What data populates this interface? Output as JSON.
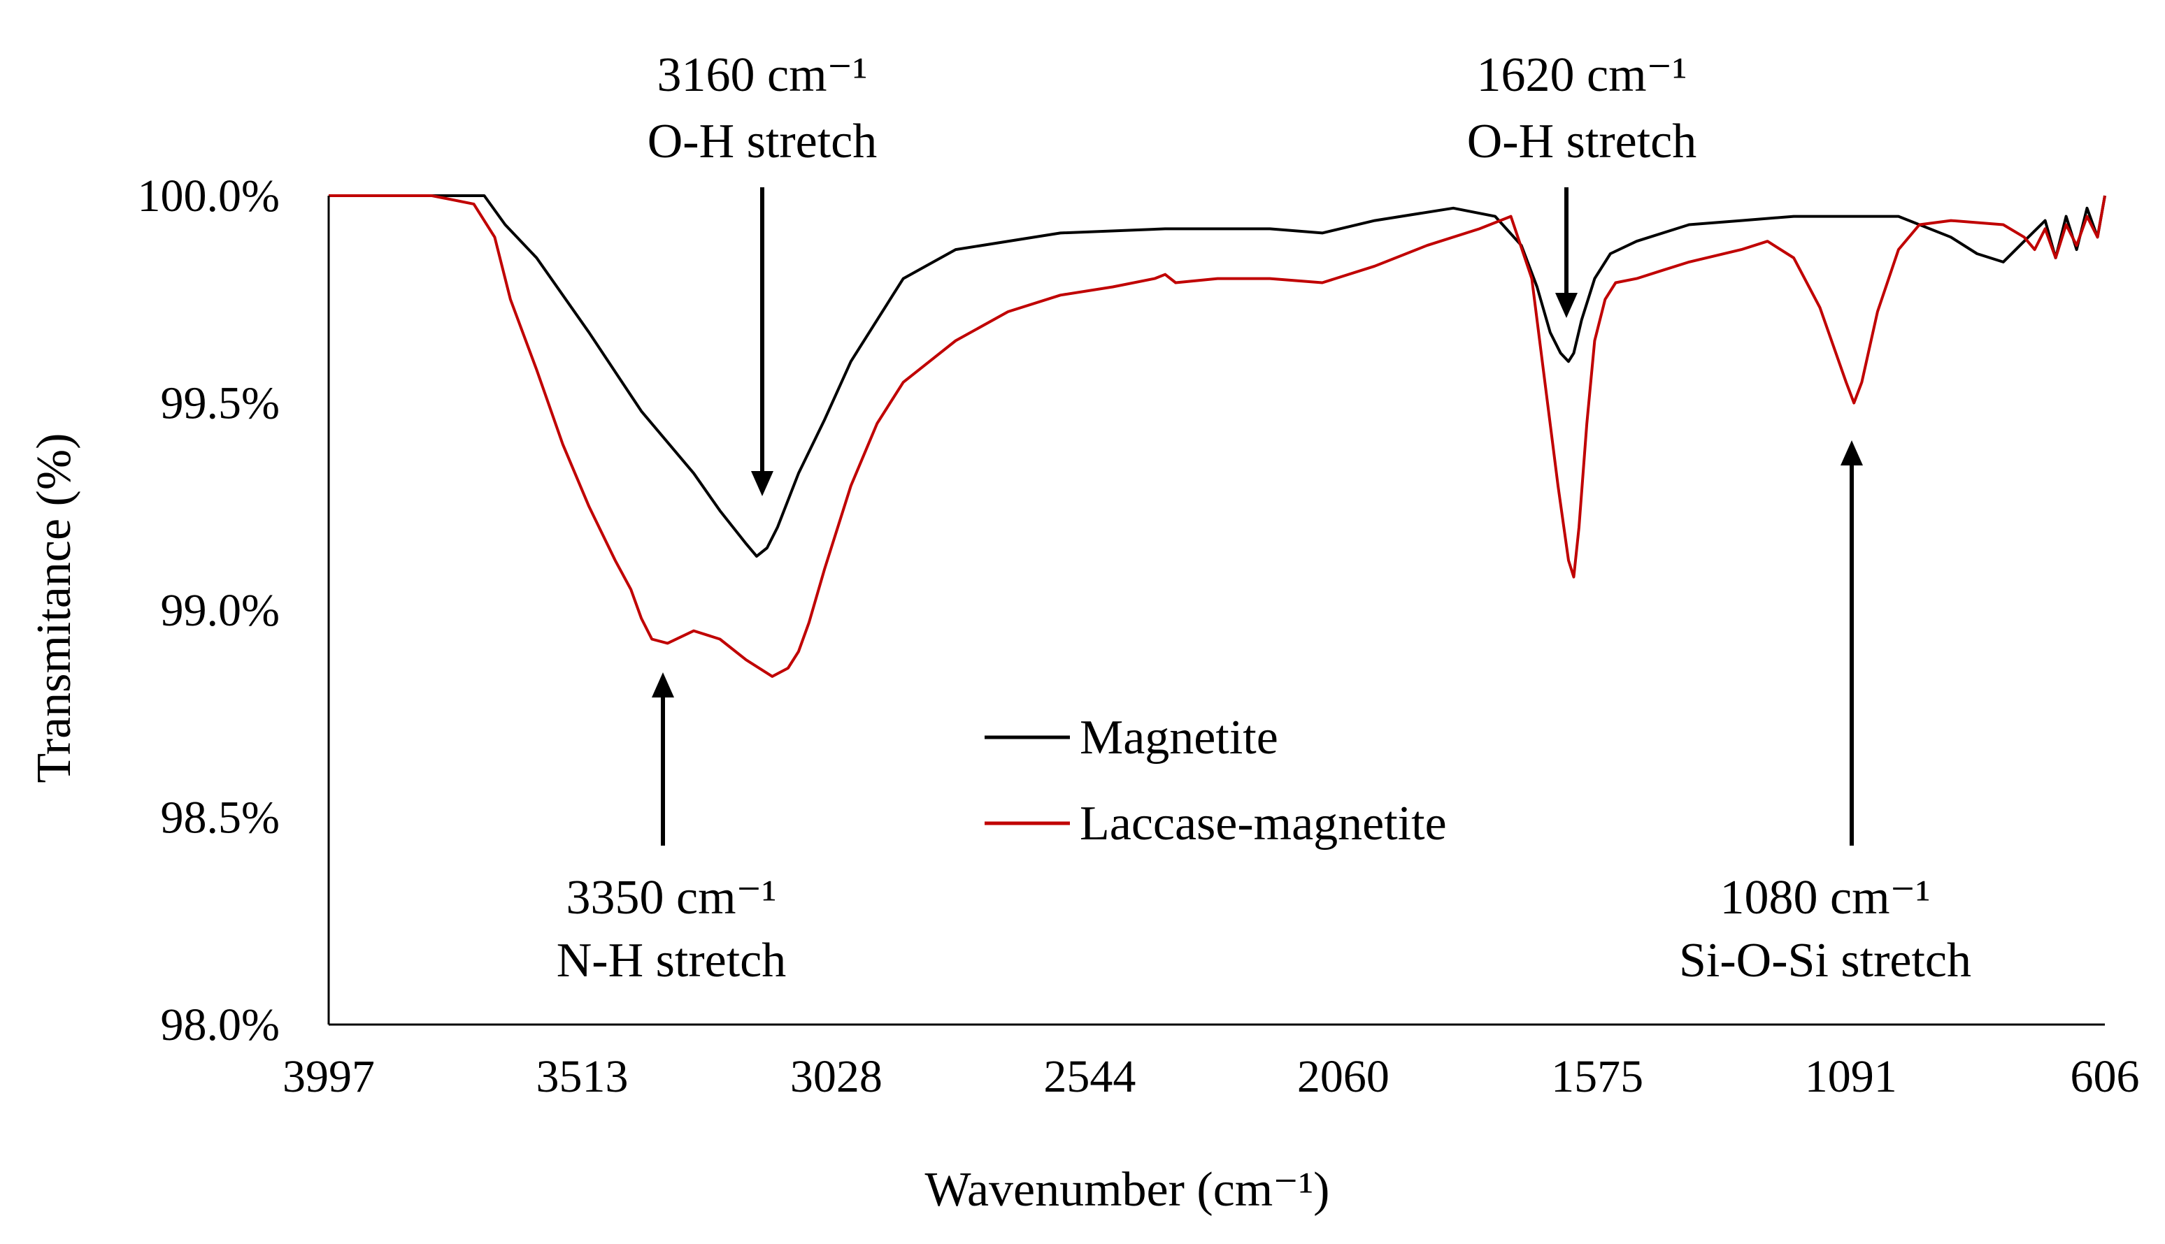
{
  "chart_data": {
    "type": "line",
    "title": "",
    "xlabel": "Wavenumber (cm⁻¹)",
    "ylabel": "Transmitance (%)",
    "x_reversed": true,
    "xlim": [
      3997,
      606
    ],
    "ylim": [
      98.0,
      100.0
    ],
    "x_ticks": [
      "3997",
      "3513",
      "3028",
      "2544",
      "2060",
      "1575",
      "1091",
      "606"
    ],
    "x_tick_values": [
      3997,
      3513,
      3028,
      2544,
      2060,
      1575,
      1091,
      606
    ],
    "y_ticks": [
      "100.0%",
      "99.5%",
      "99.0%",
      "98.5%",
      "98.0%"
    ],
    "y_tick_values": [
      100.0,
      99.5,
      99.0,
      98.5,
      98.0
    ],
    "grid": false,
    "legend_position": "center",
    "series": [
      {
        "name": "Magnetite",
        "color": "#000000",
        "x": [
          3997,
          3800,
          3700,
          3660,
          3600,
          3500,
          3400,
          3300,
          3250,
          3200,
          3180,
          3160,
          3140,
          3100,
          3050,
          3000,
          2950,
          2900,
          2800,
          2600,
          2400,
          2200,
          2100,
          2000,
          1850,
          1770,
          1720,
          1690,
          1665,
          1645,
          1630,
          1620,
          1605,
          1580,
          1550,
          1500,
          1400,
          1300,
          1200,
          1100,
          1000,
          900,
          850,
          800,
          760,
          720,
          700,
          680,
          660,
          640,
          620,
          606
        ],
        "y": [
          100.0,
          100.0,
          100.0,
          99.93,
          99.85,
          99.67,
          99.48,
          99.33,
          99.24,
          99.16,
          99.13,
          99.15,
          99.2,
          99.33,
          99.46,
          99.6,
          99.7,
          99.8,
          99.87,
          99.91,
          99.92,
          99.92,
          99.91,
          99.94,
          99.97,
          99.95,
          99.88,
          99.78,
          99.67,
          99.62,
          99.6,
          99.62,
          99.7,
          99.8,
          99.86,
          99.89,
          99.93,
          99.94,
          99.95,
          99.95,
          99.95,
          99.9,
          99.86,
          99.84,
          99.89,
          99.94,
          99.85,
          99.95,
          99.87,
          99.97,
          99.9,
          100.0
        ]
      },
      {
        "name": "Laccase-magnetite",
        "color": "#c00000",
        "x": [
          3997,
          3800,
          3720,
          3680,
          3650,
          3600,
          3550,
          3500,
          3450,
          3420,
          3400,
          3380,
          3350,
          3300,
          3250,
          3200,
          3150,
          3120,
          3100,
          3080,
          3050,
          3000,
          2950,
          2900,
          2800,
          2700,
          2600,
          2500,
          2420,
          2400,
          2380,
          2300,
          2200,
          2100,
          2000,
          1900,
          1800,
          1740,
          1700,
          1670,
          1650,
          1630,
          1620,
          1610,
          1595,
          1580,
          1560,
          1540,
          1500,
          1450,
          1400,
          1300,
          1250,
          1200,
          1150,
          1100,
          1085,
          1070,
          1040,
          1000,
          960,
          900,
          800,
          760,
          740,
          720,
          700,
          680,
          660,
          640,
          620,
          606
        ],
        "y": [
          100.0,
          100.0,
          99.98,
          99.9,
          99.75,
          99.58,
          99.4,
          99.25,
          99.12,
          99.05,
          98.98,
          98.93,
          98.92,
          98.95,
          98.93,
          98.88,
          98.84,
          98.86,
          98.9,
          98.97,
          99.1,
          99.3,
          99.45,
          99.55,
          99.65,
          99.72,
          99.76,
          99.78,
          99.8,
          99.81,
          99.79,
          99.8,
          99.8,
          99.79,
          99.83,
          99.88,
          99.92,
          99.95,
          99.8,
          99.5,
          99.3,
          99.12,
          99.08,
          99.2,
          99.45,
          99.65,
          99.75,
          99.79,
          99.8,
          99.82,
          99.84,
          99.87,
          99.89,
          99.85,
          99.73,
          99.55,
          99.5,
          99.55,
          99.72,
          99.87,
          99.93,
          99.94,
          99.93,
          99.9,
          99.87,
          99.92,
          99.85,
          99.93,
          99.88,
          99.95,
          99.9,
          100.0
        ]
      }
    ],
    "annotations": [
      {
        "wavenumber_line": "3160 cm⁻¹",
        "band_line": "O-H stretch",
        "peak_x": 3160,
        "peak_y": 99.13,
        "direction": "down"
      },
      {
        "wavenumber_line": "1620 cm⁻¹",
        "band_line": "O-H stretch",
        "peak_x": 1620,
        "peak_y": 99.6,
        "direction": "down"
      },
      {
        "wavenumber_line": "3350 cm⁻¹",
        "band_line": "N-H stretch",
        "peak_x": 3350,
        "peak_y": 98.92,
        "direction": "up"
      },
      {
        "wavenumber_line": "1080 cm⁻¹",
        "band_line": "Si-O-Si stretch",
        "peak_x": 1080,
        "peak_y": 99.5,
        "direction": "up"
      }
    ]
  }
}
